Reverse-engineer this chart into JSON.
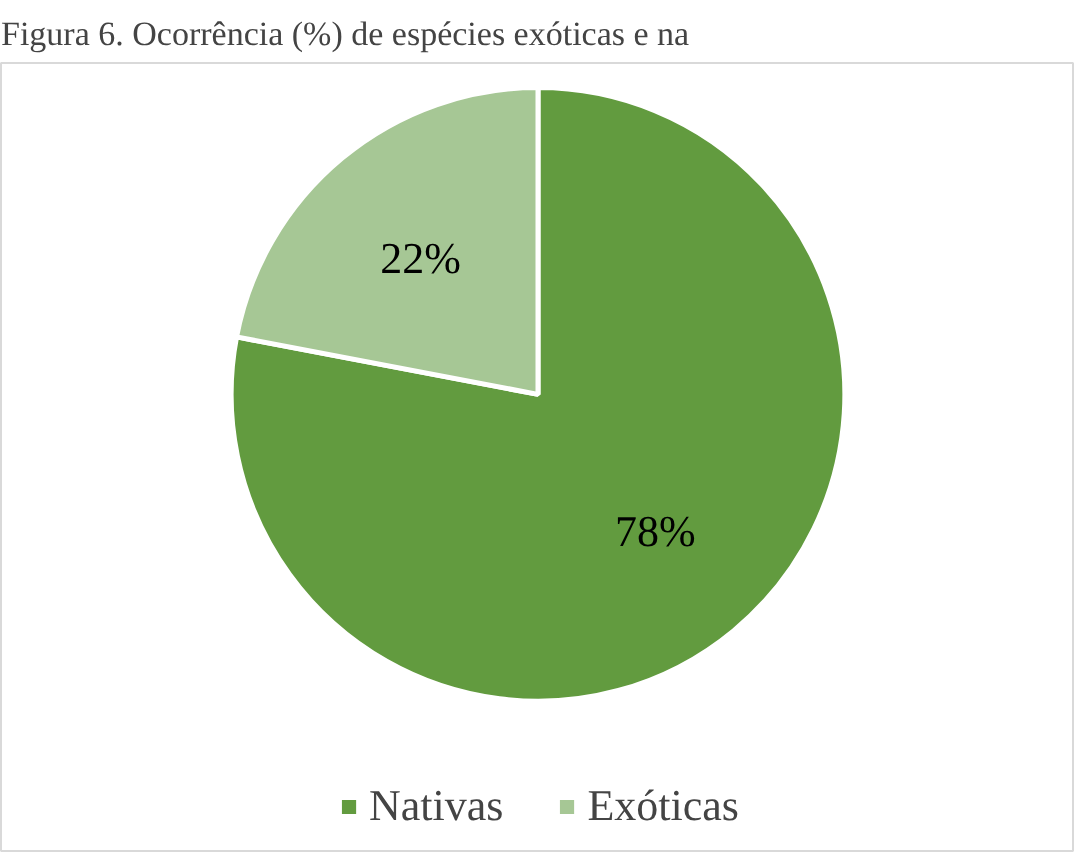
{
  "chart_data": {
    "type": "pie",
    "title": "Figura 6. Ocorrência (%) de espécies exóticas e na",
    "categories": [
      "Nativas",
      "Exóticas"
    ],
    "values": [
      78,
      22
    ],
    "colors": [
      "#629b3f",
      "#a6c795"
    ],
    "value_labels": [
      "78%",
      "22%"
    ],
    "legend": "bottom"
  }
}
